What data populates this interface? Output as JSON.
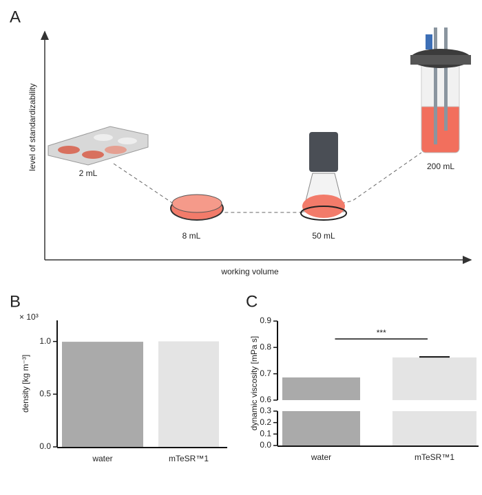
{
  "diagram": {
    "label": "A",
    "y_label": "level of standardizability",
    "x_label": "working volume",
    "nodes": [
      {
        "label": "2 mL"
      },
      {
        "label": "8 mL"
      },
      {
        "label": "50 mL"
      },
      {
        "label": "200 mL"
      }
    ]
  },
  "chart_data": [
    {
      "type": "bar",
      "label": "B",
      "y_label": "density [kg m⁻³]",
      "multiplier": "× 10³",
      "categories": [
        "water",
        "mTeSR™1"
      ],
      "values": [
        0.997,
        1.001
      ],
      "colors": [
        "#aaaaaa",
        "#e4e4e4"
      ],
      "ylim": [
        0,
        1.2
      ],
      "yticks": [
        {
          "value": 0,
          "label": "0.0"
        },
        {
          "value": 0.5,
          "label": "0.5"
        },
        {
          "value": 1,
          "label": "1.0"
        }
      ]
    },
    {
      "type": "broken_bar",
      "label": "C",
      "y_label": "dynamic viscosity [mPa s]",
      "categories": [
        "water",
        "mTeSR™1"
      ],
      "values": [
        0.686,
        0.762
      ],
      "errors": [
        null,
        0.002
      ],
      "colors": [
        "#aaaaaa",
        "#e4e4e4"
      ],
      "significance": "***",
      "ylim": [
        0,
        0.9
      ],
      "ybreak": [
        0.3,
        0.6
      ],
      "yticks": [
        {
          "value": 0,
          "label": "0.0"
        },
        {
          "value": 0.1,
          "label": "0.1"
        },
        {
          "value": 0.2,
          "label": "0.2"
        },
        {
          "value": 0.3,
          "label": "0.3"
        },
        {
          "value": 0.6,
          "label": "0.6"
        },
        {
          "value": 0.7,
          "label": "0.7"
        },
        {
          "value": 0.8,
          "label": "0.8"
        },
        {
          "value": 0.9,
          "label": "0.9"
        }
      ]
    }
  ]
}
